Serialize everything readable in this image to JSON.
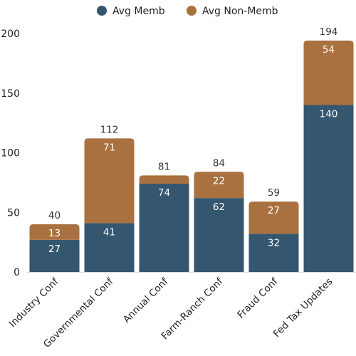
{
  "chart_data": {
    "type": "bar",
    "stacked": true,
    "categories": [
      "Industry Conf",
      "Governmental Conf",
      "Annual Conf",
      "Farm-Ranch Conf",
      "Fraud Conf",
      "Fed Tax Updates"
    ],
    "series": [
      {
        "name": "Avg Memb",
        "values": [
          27,
          41,
          74,
          62,
          32,
          140
        ],
        "color": "#34566f"
      },
      {
        "name": "Avg Non-Memb",
        "values": [
          13,
          71,
          7,
          22,
          27,
          54
        ],
        "color": "#a9713f"
      }
    ],
    "totals": [
      40,
      112,
      81,
      84,
      59,
      194
    ],
    "segment_labels_shown": [
      [
        true,
        true,
        true,
        true,
        true,
        true
      ],
      [
        true,
        true,
        false,
        true,
        true,
        true
      ]
    ],
    "ylim": [
      0,
      200
    ],
    "yticks": [
      0,
      50,
      100,
      150,
      200
    ],
    "legend": "top-center",
    "grid": false,
    "xlabel": "",
    "ylabel": ""
  }
}
